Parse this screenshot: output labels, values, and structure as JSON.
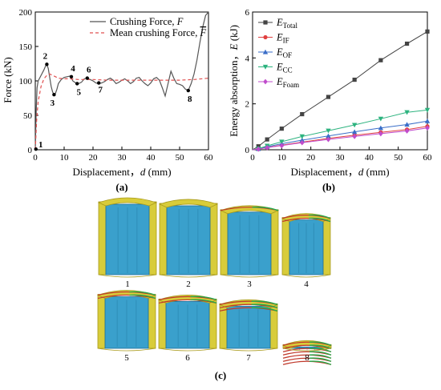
{
  "chart_data": [
    {
      "type": "line",
      "panel_label": "(a)",
      "xlabel": "Displacement，",
      "xlabel_var": "d",
      "xlabel_unit": " (mm)",
      "ylabel": "Force (kN)",
      "xlim": [
        0,
        60
      ],
      "ylim": [
        0,
        200
      ],
      "xticks": [
        0,
        10,
        20,
        30,
        40,
        50,
        60
      ],
      "yticks": [
        0,
        50,
        100,
        150,
        200
      ],
      "legend_position": "top-right",
      "series": [
        {
          "name": "Crushing Force, ",
          "name_var": "F",
          "color": "#555555",
          "style": "solid",
          "x": [
            0,
            0.3,
            0.6,
            1,
            1.5,
            2,
            2.5,
            3,
            3.5,
            4,
            4.5,
            5,
            5.5,
            6,
            6.5,
            7,
            7.5,
            8,
            9,
            10,
            11,
            12,
            12.5,
            13,
            14,
            15,
            16,
            17,
            18,
            19,
            20,
            21,
            22,
            23,
            24,
            25,
            26,
            27,
            28,
            29,
            30,
            31,
            32,
            33,
            34,
            35,
            36,
            37,
            38,
            39,
            40,
            41,
            42,
            43,
            44,
            45,
            46,
            47,
            48,
            49,
            50,
            51,
            52,
            53,
            54,
            55,
            56,
            57,
            58,
            59,
            60
          ],
          "y": [
            0,
            55,
            90,
            100,
            104,
            108,
            112,
            116,
            121,
            124,
            118,
            105,
            92,
            84,
            80,
            82,
            88,
            96,
            102,
            105,
            106,
            107,
            104,
            100,
            97,
            96,
            98,
            103,
            104,
            102,
            100,
            97,
            96,
            97,
            99,
            102,
            104,
            101,
            96,
            98,
            101,
            103,
            100,
            96,
            99,
            104,
            105,
            100,
            96,
            93,
            97,
            103,
            105,
            101,
            90,
            78,
            96,
            114,
            104,
            96,
            95,
            93,
            88,
            86,
            96,
            110,
            130,
            155,
            178,
            195,
            200
          ]
        },
        {
          "name": "Mean crushing Force, ",
          "name_var": "F",
          "color": "#e05050",
          "style": "dashed",
          "x": [
            0,
            0.5,
            1,
            2,
            3,
            4,
            5,
            6,
            7,
            8,
            10,
            12,
            15,
            20,
            25,
            30,
            35,
            40,
            45,
            50,
            55,
            60
          ],
          "y": [
            0,
            45,
            70,
            92,
            103,
            108,
            110,
            108,
            106,
            104,
            103,
            103,
            102,
            102,
            101,
            101,
            101,
            101,
            101,
            101,
            102,
            104
          ]
        }
      ],
      "annotations": [
        {
          "label": "1",
          "x": 0.2,
          "y": 1
        },
        {
          "label": "2",
          "x": 4.0,
          "y": 124
        },
        {
          "label": "3",
          "x": 6.5,
          "y": 80
        },
        {
          "label": "4",
          "x": 12.5,
          "y": 106
        },
        {
          "label": "5",
          "x": 14.5,
          "y": 96
        },
        {
          "label": "6",
          "x": 18.0,
          "y": 104
        },
        {
          "label": "7",
          "x": 22.0,
          "y": 97
        },
        {
          "label": "8",
          "x": 53.0,
          "y": 86
        }
      ]
    },
    {
      "type": "line",
      "panel_label": "(b)",
      "xlabel": "Displacement，",
      "xlabel_var": "d",
      "xlabel_unit": " (mm)",
      "ylabel": "Energy absorption，",
      "ylabel_var": "E",
      "ylabel_unit": " (kJ)",
      "xlim": [
        0,
        60
      ],
      "ylim": [
        0,
        6
      ],
      "xticks": [
        0,
        10,
        20,
        30,
        40,
        50,
        60
      ],
      "yticks": [
        0,
        2,
        4,
        6
      ],
      "legend_position": "top-left",
      "x": [
        0,
        2,
        5,
        10,
        17,
        26,
        35,
        44,
        53,
        60
      ],
      "series": [
        {
          "name": "E",
          "sub": "Total",
          "color": "#444444",
          "marker": "square",
          "values": [
            0,
            0.15,
            0.45,
            0.92,
            1.55,
            2.3,
            3.05,
            3.9,
            4.62,
            5.15
          ]
        },
        {
          "name": "E",
          "sub": "IF",
          "color": "#e04040",
          "marker": "circle",
          "values": [
            0,
            0.03,
            0.1,
            0.2,
            0.33,
            0.5,
            0.63,
            0.76,
            0.88,
            1.02
          ]
        },
        {
          "name": "E",
          "sub": "OF",
          "color": "#3a6ec8",
          "marker": "triangle-up",
          "values": [
            0,
            0.04,
            0.13,
            0.26,
            0.42,
            0.6,
            0.78,
            0.95,
            1.1,
            1.25
          ]
        },
        {
          "name": "E",
          "sub": "CC",
          "color": "#2db37f",
          "marker": "triangle-down",
          "values": [
            0,
            0.05,
            0.17,
            0.35,
            0.58,
            0.83,
            1.08,
            1.35,
            1.63,
            1.73
          ]
        },
        {
          "name": "E",
          "sub": "Foam",
          "color": "#c04ccc",
          "marker": "diamond",
          "values": [
            0,
            0.03,
            0.09,
            0.18,
            0.31,
            0.45,
            0.58,
            0.7,
            0.82,
            0.95
          ]
        }
      ]
    }
  ],
  "panel_c": {
    "label": "(c)",
    "stages": [
      "1",
      "2",
      "3",
      "4",
      "5",
      "6",
      "7",
      "8"
    ],
    "crush_fraction": [
      0,
      0.02,
      0.1,
      0.2,
      0.24,
      0.3,
      0.36,
      0.88
    ],
    "colors": {
      "core": "#3aa0cc",
      "core_dark": "#1e6f98",
      "skin": "#d8cc3a",
      "skin_dark": "#a89a1c",
      "fold_red": "#c0392b",
      "fold_green": "#2aa84a"
    }
  }
}
